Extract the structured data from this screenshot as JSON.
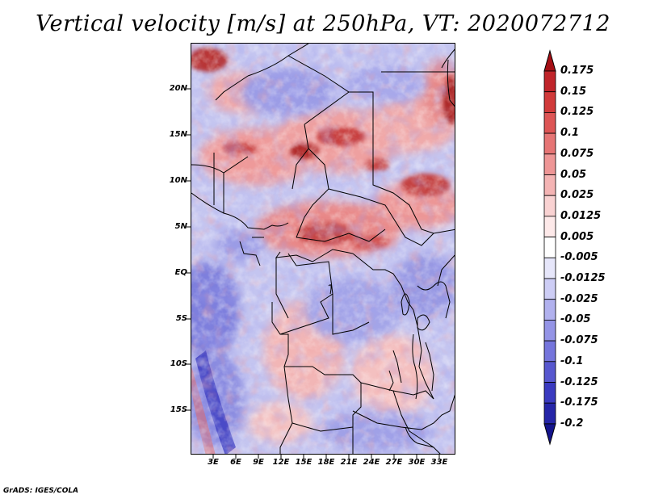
{
  "title": "Vertical velocity [m/s] at 250hPa, VT: 2020072712",
  "footer": "GrADS: IGES/COLA",
  "map": {
    "variable": "Vertical velocity",
    "units": "m/s",
    "level": "250hPa",
    "valid_time": "2020072712",
    "lat_labels": [
      "20N",
      "15N",
      "10N",
      "5N",
      "EQ",
      "5S",
      "10S",
      "15S"
    ],
    "lon_labels": [
      "3E",
      "6E",
      "9E",
      "12E",
      "15E",
      "18E",
      "21E",
      "24E",
      "27E",
      "30E",
      "33E"
    ],
    "lat_values": [
      20,
      15,
      10,
      5,
      0,
      -5,
      -10,
      -15
    ],
    "lon_values": [
      3,
      6,
      9,
      12,
      15,
      18,
      21,
      24,
      27,
      30,
      33
    ],
    "lon_range": [
      0,
      35
    ],
    "lat_range": [
      -20,
      25
    ]
  },
  "colorbar": {
    "labels": [
      "0.175",
      "0.15",
      "0.125",
      "0.1",
      "0.075",
      "0.05",
      "0.025",
      "0.0125",
      "0.005",
      "-0.005",
      "-0.0125",
      "-0.025",
      "-0.05",
      "-0.075",
      "-0.1",
      "-0.125",
      "-0.175",
      "-0.2"
    ],
    "colors": [
      "#a50f15",
      "#c0242a",
      "#d13a3a",
      "#dd5555",
      "#e67575",
      "#ee9696",
      "#f4b4b4",
      "#f9d2d2",
      "#fde9e9",
      "#ffffff",
      "#e6e6fa",
      "#cdcdf5",
      "#b1b1ee",
      "#9494e6",
      "#7575dc",
      "#5757cf",
      "#3a3ac0",
      "#2525a8",
      "#14148c"
    ]
  }
}
